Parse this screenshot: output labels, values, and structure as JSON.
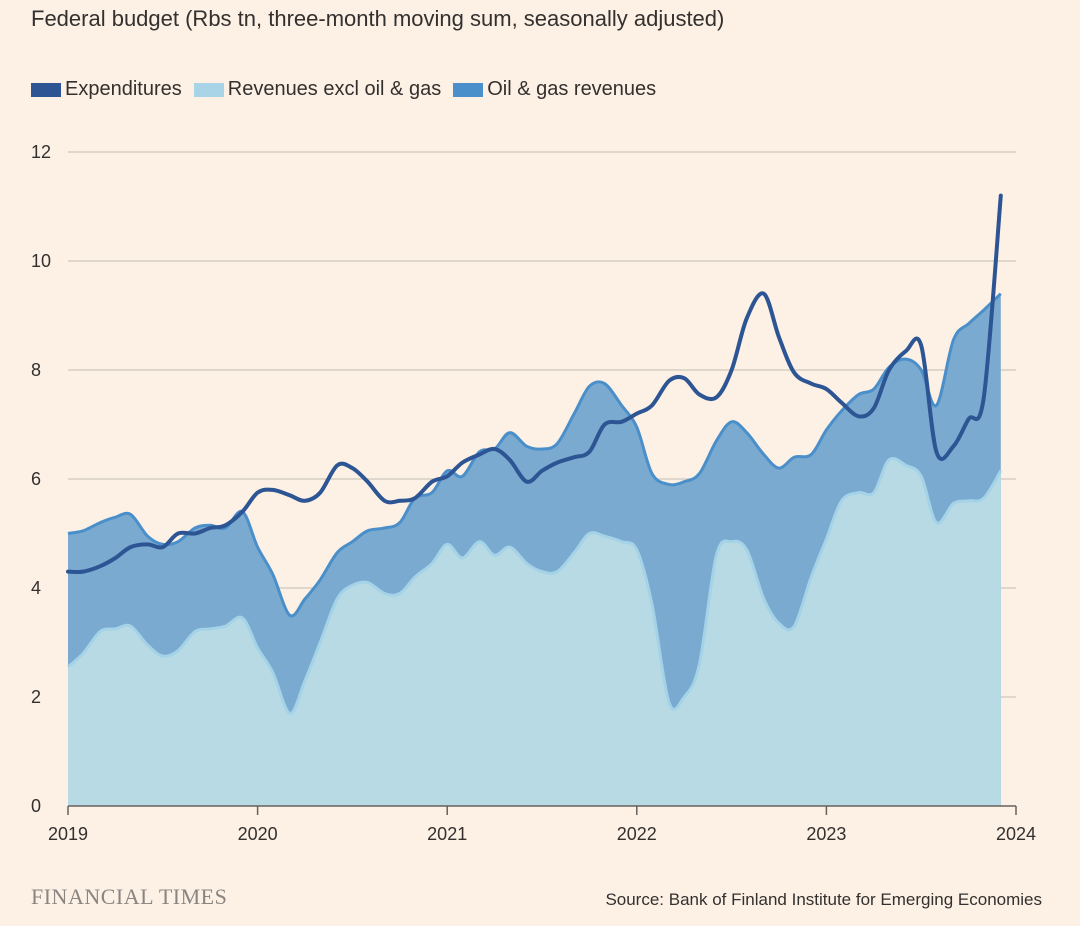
{
  "chart_data": {
    "type": "area",
    "title": "Federal budget (Rbs tn, three-month moving sum, seasonally adjusted)",
    "xlabel": "",
    "ylabel": "",
    "xlim": [
      2019,
      2024
    ],
    "ylim": [
      0,
      12
    ],
    "yticks": [
      0,
      2,
      4,
      6,
      8,
      10,
      12
    ],
    "xticks": [
      2019,
      2020,
      2021,
      2022,
      2023,
      2024
    ],
    "xtick_labels": [
      "2019",
      "2020",
      "2021",
      "2022",
      "2023",
      "2024"
    ],
    "ytick_labels": [
      "0",
      "2",
      "4",
      "6",
      "8",
      "10",
      "12"
    ],
    "series": [
      {
        "name": "Expenditures",
        "kind": "line",
        "color": "#2d5594",
        "points": [
          [
            2019.0,
            4.3
          ],
          [
            2019.08,
            4.3
          ],
          [
            2019.17,
            4.4
          ],
          [
            2019.25,
            4.55
          ],
          [
            2019.33,
            4.75
          ],
          [
            2019.42,
            4.8
          ],
          [
            2019.5,
            4.75
          ],
          [
            2019.58,
            5.0
          ],
          [
            2019.67,
            5.0
          ],
          [
            2019.75,
            5.1
          ],
          [
            2019.83,
            5.15
          ],
          [
            2019.92,
            5.4
          ],
          [
            2020.0,
            5.75
          ],
          [
            2020.08,
            5.8
          ],
          [
            2020.17,
            5.7
          ],
          [
            2020.25,
            5.6
          ],
          [
            2020.33,
            5.75
          ],
          [
            2020.42,
            6.25
          ],
          [
            2020.5,
            6.2
          ],
          [
            2020.58,
            5.95
          ],
          [
            2020.67,
            5.6
          ],
          [
            2020.75,
            5.6
          ],
          [
            2020.83,
            5.65
          ],
          [
            2020.92,
            5.95
          ],
          [
            2021.0,
            6.05
          ],
          [
            2021.08,
            6.3
          ],
          [
            2021.17,
            6.45
          ],
          [
            2021.25,
            6.55
          ],
          [
            2021.33,
            6.35
          ],
          [
            2021.42,
            5.95
          ],
          [
            2021.5,
            6.15
          ],
          [
            2021.58,
            6.3
          ],
          [
            2021.67,
            6.4
          ],
          [
            2021.75,
            6.5
          ],
          [
            2021.83,
            7.0
          ],
          [
            2021.92,
            7.05
          ],
          [
            2022.0,
            7.2
          ],
          [
            2022.08,
            7.35
          ],
          [
            2022.17,
            7.8
          ],
          [
            2022.25,
            7.85
          ],
          [
            2022.33,
            7.55
          ],
          [
            2022.42,
            7.5
          ],
          [
            2022.5,
            8.0
          ],
          [
            2022.58,
            8.95
          ],
          [
            2022.67,
            9.4
          ],
          [
            2022.75,
            8.6
          ],
          [
            2022.83,
            7.95
          ],
          [
            2022.92,
            7.75
          ],
          [
            2023.0,
            7.65
          ],
          [
            2023.08,
            7.4
          ],
          [
            2023.17,
            7.15
          ],
          [
            2023.25,
            7.3
          ],
          [
            2023.33,
            8.0
          ],
          [
            2023.42,
            8.35
          ],
          [
            2023.5,
            8.45
          ],
          [
            2023.58,
            6.5
          ],
          [
            2023.67,
            6.6
          ],
          [
            2023.75,
            7.1
          ],
          [
            2023.83,
            7.5
          ],
          [
            2023.92,
            11.2
          ]
        ]
      },
      {
        "name": "Revenues excl oil & gas",
        "kind": "area",
        "color": "#b8dae5",
        "points": [
          [
            2019.0,
            2.55
          ],
          [
            2019.08,
            2.8
          ],
          [
            2019.17,
            3.2
          ],
          [
            2019.25,
            3.25
          ],
          [
            2019.33,
            3.3
          ],
          [
            2019.42,
            2.95
          ],
          [
            2019.5,
            2.75
          ],
          [
            2019.58,
            2.85
          ],
          [
            2019.67,
            3.2
          ],
          [
            2019.75,
            3.25
          ],
          [
            2019.83,
            3.3
          ],
          [
            2019.92,
            3.45
          ],
          [
            2020.0,
            2.9
          ],
          [
            2020.08,
            2.45
          ],
          [
            2020.17,
            1.7
          ],
          [
            2020.25,
            2.3
          ],
          [
            2020.33,
            3.0
          ],
          [
            2020.42,
            3.8
          ],
          [
            2020.5,
            4.05
          ],
          [
            2020.58,
            4.1
          ],
          [
            2020.67,
            3.9
          ],
          [
            2020.75,
            3.9
          ],
          [
            2020.83,
            4.2
          ],
          [
            2020.92,
            4.45
          ],
          [
            2021.0,
            4.8
          ],
          [
            2021.08,
            4.55
          ],
          [
            2021.17,
            4.85
          ],
          [
            2021.25,
            4.6
          ],
          [
            2021.33,
            4.75
          ],
          [
            2021.42,
            4.45
          ],
          [
            2021.5,
            4.3
          ],
          [
            2021.58,
            4.3
          ],
          [
            2021.67,
            4.65
          ],
          [
            2021.75,
            5.0
          ],
          [
            2021.83,
            4.95
          ],
          [
            2021.92,
            4.85
          ],
          [
            2022.0,
            4.7
          ],
          [
            2022.08,
            3.7
          ],
          [
            2022.17,
            1.9
          ],
          [
            2022.25,
            2.0
          ],
          [
            2022.33,
            2.6
          ],
          [
            2022.42,
            4.6
          ],
          [
            2022.5,
            4.85
          ],
          [
            2022.58,
            4.7
          ],
          [
            2022.67,
            3.8
          ],
          [
            2022.75,
            3.35
          ],
          [
            2022.83,
            3.3
          ],
          [
            2022.92,
            4.2
          ],
          [
            2023.0,
            4.9
          ],
          [
            2023.08,
            5.6
          ],
          [
            2023.17,
            5.75
          ],
          [
            2023.25,
            5.75
          ],
          [
            2023.33,
            6.35
          ],
          [
            2023.42,
            6.25
          ],
          [
            2023.5,
            6.05
          ],
          [
            2023.58,
            5.2
          ],
          [
            2023.67,
            5.55
          ],
          [
            2023.75,
            5.6
          ],
          [
            2023.83,
            5.65
          ],
          [
            2023.92,
            6.15
          ]
        ]
      },
      {
        "name": "Oil & gas revenues",
        "kind": "stacked-area-total",
        "color": "#7aaad0",
        "edge_color": "#4a8fc9",
        "points": [
          [
            2019.0,
            5.0
          ],
          [
            2019.08,
            5.05
          ],
          [
            2019.17,
            5.2
          ],
          [
            2019.25,
            5.3
          ],
          [
            2019.33,
            5.35
          ],
          [
            2019.42,
            4.95
          ],
          [
            2019.5,
            4.8
          ],
          [
            2019.58,
            4.85
          ],
          [
            2019.67,
            5.1
          ],
          [
            2019.75,
            5.15
          ],
          [
            2019.83,
            5.1
          ],
          [
            2019.92,
            5.4
          ],
          [
            2020.0,
            4.75
          ],
          [
            2020.08,
            4.25
          ],
          [
            2020.17,
            3.5
          ],
          [
            2020.25,
            3.8
          ],
          [
            2020.33,
            4.15
          ],
          [
            2020.42,
            4.65
          ],
          [
            2020.5,
            4.85
          ],
          [
            2020.58,
            5.05
          ],
          [
            2020.67,
            5.1
          ],
          [
            2020.75,
            5.2
          ],
          [
            2020.83,
            5.65
          ],
          [
            2020.92,
            5.75
          ],
          [
            2021.0,
            6.15
          ],
          [
            2021.08,
            6.05
          ],
          [
            2021.17,
            6.5
          ],
          [
            2021.25,
            6.55
          ],
          [
            2021.33,
            6.85
          ],
          [
            2021.42,
            6.6
          ],
          [
            2021.5,
            6.55
          ],
          [
            2021.58,
            6.65
          ],
          [
            2021.67,
            7.2
          ],
          [
            2021.75,
            7.7
          ],
          [
            2021.83,
            7.75
          ],
          [
            2021.92,
            7.35
          ],
          [
            2022.0,
            6.95
          ],
          [
            2022.08,
            6.1
          ],
          [
            2022.17,
            5.9
          ],
          [
            2022.25,
            5.95
          ],
          [
            2022.33,
            6.1
          ],
          [
            2022.42,
            6.7
          ],
          [
            2022.5,
            7.05
          ],
          [
            2022.58,
            6.85
          ],
          [
            2022.67,
            6.45
          ],
          [
            2022.75,
            6.2
          ],
          [
            2022.83,
            6.4
          ],
          [
            2022.92,
            6.45
          ],
          [
            2023.0,
            6.9
          ],
          [
            2023.08,
            7.25
          ],
          [
            2023.17,
            7.55
          ],
          [
            2023.25,
            7.65
          ],
          [
            2023.33,
            8.05
          ],
          [
            2023.42,
            8.2
          ],
          [
            2023.5,
            8.0
          ],
          [
            2023.58,
            7.35
          ],
          [
            2023.67,
            8.55
          ],
          [
            2023.75,
            8.85
          ],
          [
            2023.83,
            9.1
          ],
          [
            2023.92,
            9.4
          ]
        ]
      }
    ],
    "legend": [
      "Expenditures",
      "Revenues excl oil & gas",
      "Oil & gas revenues"
    ],
    "legend_colors": [
      "#2d5594",
      "#a9d4e7",
      "#4a8fc9"
    ],
    "legend_placement": "top-left",
    "grid": true
  },
  "footer": {
    "logo": "FINANCIAL TIMES",
    "source": "Source: Bank of Finland Institute for Emerging Economies"
  }
}
